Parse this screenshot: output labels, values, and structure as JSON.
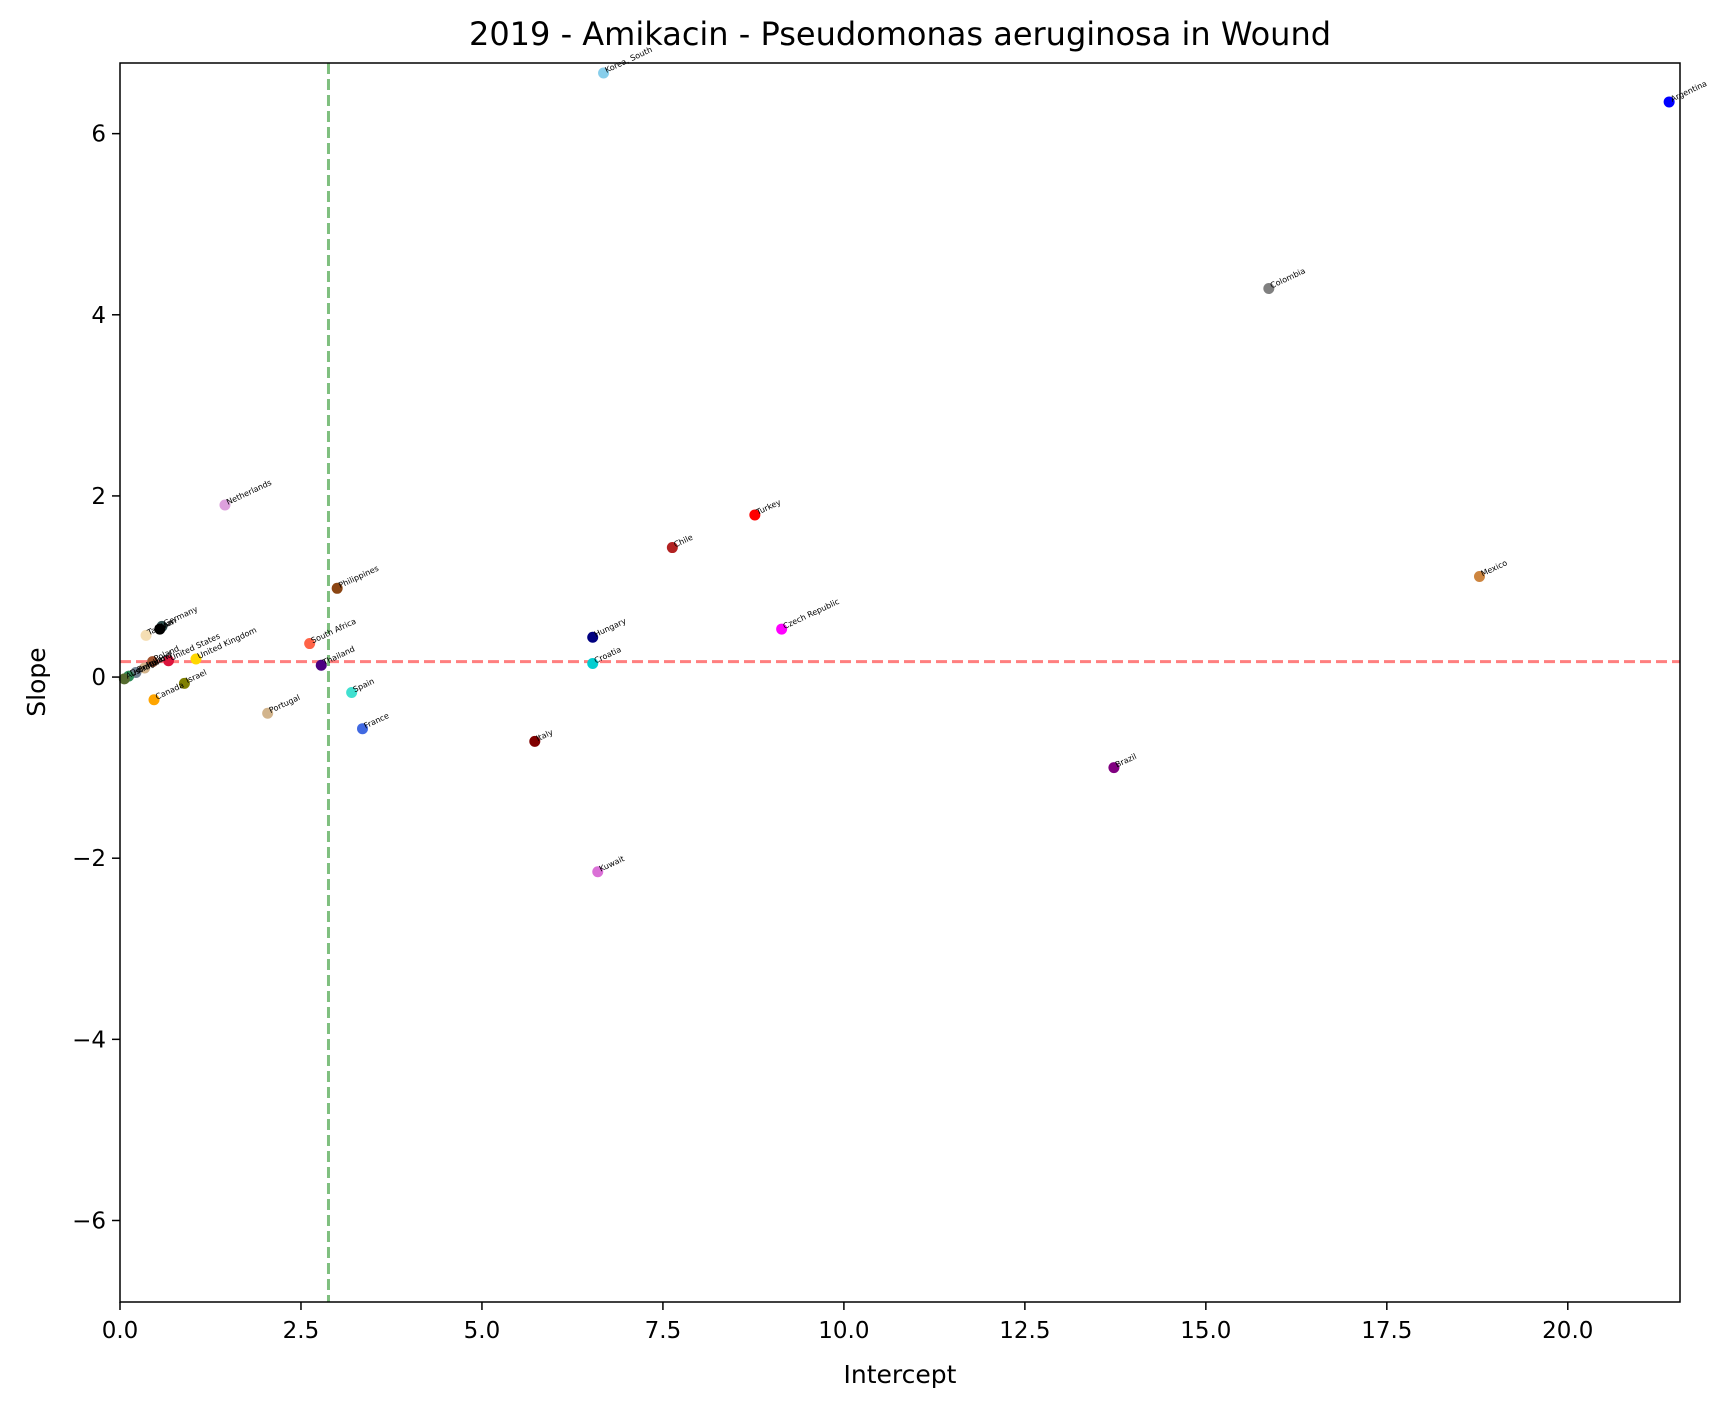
{
  "chart_data": {
    "type": "scatter",
    "title": "2019 - Amikacin - Pseudomonas aeruginosa in Wound",
    "xlabel": "Intercept",
    "ylabel": "Slope",
    "xlim": [
      0,
      21.55
    ],
    "ylim": [
      -6.9,
      6.78
    ],
    "xticks": [
      0.0,
      2.5,
      5.0,
      7.5,
      10.0,
      12.5,
      15.0,
      17.5,
      20.0
    ],
    "xtick_labels": [
      "0.0",
      "2.5",
      "5.0",
      "7.5",
      "10.0",
      "12.5",
      "15.0",
      "17.5",
      "20.0"
    ],
    "yticks": [
      -6,
      -4,
      -2,
      0,
      2,
      4,
      6
    ],
    "ytick_labels": [
      "−6",
      "−4",
      "−2",
      "0",
      "2",
      "4",
      "6"
    ],
    "reference_lines": [
      {
        "orientation": "horizontal",
        "value": 0.17,
        "color": "#ff7f7f",
        "style": "dashed"
      },
      {
        "orientation": "vertical",
        "value": 2.88,
        "color": "#7fbf7f",
        "style": "dashed"
      }
    ],
    "points": [
      {
        "label": "Korea, South",
        "x": 6.68,
        "y": 6.67,
        "color": "#87ceeb"
      },
      {
        "label": "Argentina",
        "x": 21.4,
        "y": 6.35,
        "color": "#0000ff"
      },
      {
        "label": "Colombia",
        "x": 15.87,
        "y": 4.29,
        "color": "#808080"
      },
      {
        "label": "Netherlands",
        "x": 1.45,
        "y": 1.9,
        "color": "#dda0dd"
      },
      {
        "label": "Turkey",
        "x": 8.77,
        "y": 1.79,
        "color": "#ff0000"
      },
      {
        "label": "Chile",
        "x": 7.63,
        "y": 1.43,
        "color": "#b22222"
      },
      {
        "label": "Mexico",
        "x": 18.78,
        "y": 1.11,
        "color": "#cd853f"
      },
      {
        "label": "Philippines",
        "x": 3.0,
        "y": 0.98,
        "color": "#8b4513"
      },
      {
        "label": "Germany",
        "x": 0.58,
        "y": 0.56,
        "color": "#2f4f4f"
      },
      {
        "label": "Iran",
        "x": 0.55,
        "y": 0.53,
        "color": "#000000"
      },
      {
        "label": "Taiwan",
        "x": 0.36,
        "y": 0.46,
        "color": "#f5deb3"
      },
      {
        "label": "Czech Republic",
        "x": 9.14,
        "y": 0.53,
        "color": "#ff00ff"
      },
      {
        "label": "Hungary",
        "x": 6.53,
        "y": 0.44,
        "color": "#000080"
      },
      {
        "label": "South Africa",
        "x": 2.62,
        "y": 0.37,
        "color": "#ff6347"
      },
      {
        "label": "United States",
        "x": 0.67,
        "y": 0.18,
        "color": "#dc143c"
      },
      {
        "label": "United Kingdom",
        "x": 1.05,
        "y": 0.2,
        "color": "#ffd700"
      },
      {
        "label": "Thailand",
        "x": 2.78,
        "y": 0.13,
        "color": "#4b0082"
      },
      {
        "label": "Croatia",
        "x": 6.53,
        "y": 0.15,
        "color": "#00ced1"
      },
      {
        "label": "Poland",
        "x": 0.45,
        "y": 0.17,
        "color": "#a0522d"
      },
      {
        "label": "Ireland",
        "x": 0.34,
        "y": 0.1,
        "color": "#d2b48c"
      },
      {
        "label": "Belgium",
        "x": 0.22,
        "y": 0.05,
        "color": "#708090"
      },
      {
        "label": "Denmark",
        "x": 0.12,
        "y": 0.01,
        "color": "#2e8b57"
      },
      {
        "label": "Australia",
        "x": 0.06,
        "y": -0.02,
        "color": "#556b2f"
      },
      {
        "label": "Israel",
        "x": 0.89,
        "y": -0.07,
        "color": "#808000"
      },
      {
        "label": "Canada",
        "x": 0.47,
        "y": -0.25,
        "color": "#ffa500"
      },
      {
        "label": "Spain",
        "x": 3.2,
        "y": -0.17,
        "color": "#40e0d0"
      },
      {
        "label": "Portugal",
        "x": 2.04,
        "y": -0.4,
        "color": "#d2b48c"
      },
      {
        "label": "France",
        "x": 3.35,
        "y": -0.57,
        "color": "#4169e1"
      },
      {
        "label": "Italy",
        "x": 5.73,
        "y": -0.71,
        "color": "#800000"
      },
      {
        "label": "Brazil",
        "x": 13.73,
        "y": -1.0,
        "color": "#800080"
      },
      {
        "label": "Kuwait",
        "x": 6.6,
        "y": -2.15,
        "color": "#da70d6"
      }
    ]
  }
}
